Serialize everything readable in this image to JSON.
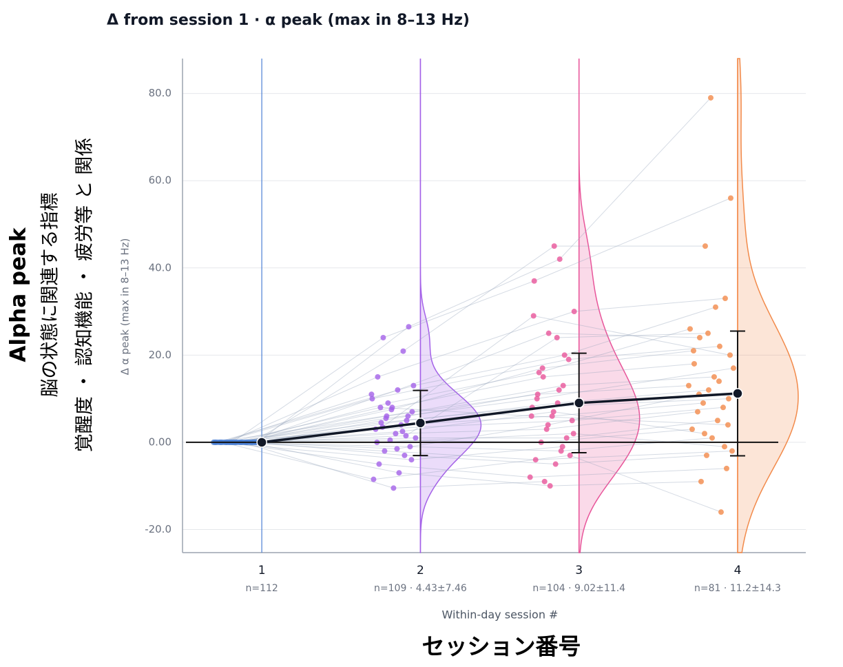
{
  "chart_data": {
    "type": "raincloud",
    "title": "Δ from session 1 · α peak (max in 8–13 Hz)",
    "y_title": "Alpha peak",
    "y_subtitle_1": "脳の状態に関連する指標",
    "y_subtitle_2": "覚醒度 ・ 認知機能 ・ 疲労等 と 関係",
    "y_axis_label": "Δ α peak (max in 8–13 Hz)",
    "x_axis_label": "Within-day session #",
    "x_subtitle": "セッション番号",
    "categories": [
      "1",
      "2",
      "3",
      "4"
    ],
    "category_notes": [
      "n=112",
      "n=109 · 4.43±7.46",
      "n=104 · 9.02±11.4",
      "n=81 · 11.2±14.3"
    ],
    "colors": [
      "#4a7fd4",
      "#a461e8",
      "#e8559a",
      "#f28a4a"
    ],
    "means": [
      0,
      4.43,
      9.02,
      11.2
    ],
    "sd": [
      null,
      7.46,
      11.4,
      14.3
    ],
    "xlim": [
      0.5,
      4.43
    ],
    "ylim": [
      -25.3,
      88
    ],
    "yticks": [
      {
        "value": -20,
        "label": "-20.0"
      },
      {
        "value": 0,
        "label": "0.00"
      },
      {
        "value": 20,
        "label": "20.0"
      },
      {
        "value": 40,
        "label": "40.0"
      },
      {
        "value": 60,
        "label": "60.0"
      },
      {
        "value": 80,
        "label": "80.0"
      }
    ],
    "grid": true,
    "subjects": [
      [
        0,
        26.5,
        42,
        79
      ],
      [
        0,
        24,
        37,
        56
      ],
      [
        0,
        20.9,
        45,
        45
      ],
      [
        0,
        15,
        30,
        33
      ],
      [
        0,
        12,
        25,
        24
      ],
      [
        0,
        10,
        19,
        22
      ],
      [
        0,
        8,
        15,
        18
      ],
      [
        0,
        7,
        13,
        15
      ],
      [
        0,
        6,
        11,
        13
      ],
      [
        0,
        5,
        9,
        12
      ],
      [
        0,
        4.5,
        8,
        10
      ],
      [
        0,
        4,
        6,
        9
      ],
      [
        0,
        3,
        5,
        8
      ],
      [
        0,
        2,
        3,
        7
      ],
      [
        0,
        1,
        1,
        5
      ],
      [
        0,
        0.5,
        0,
        3
      ],
      [
        0,
        -1,
        -2,
        1
      ],
      [
        0,
        -2,
        -4,
        -2
      ],
      [
        0,
        -3,
        -5,
        -3
      ],
      [
        0,
        -5,
        -8,
        -6
      ],
      [
        0,
        -7,
        -10,
        -9
      ],
      [
        0,
        -8.5,
        -3,
        -16
      ],
      [
        0,
        -10.5,
        -9,
        null
      ],
      [
        0,
        13,
        20,
        31
      ],
      [
        0,
        9,
        16,
        26
      ],
      [
        0,
        6,
        12,
        null
      ],
      [
        0,
        3.5,
        29,
        20
      ],
      [
        0,
        2.5,
        7,
        2
      ],
      [
        0,
        0,
        2,
        -1
      ],
      [
        0,
        -1.5,
        4,
        11
      ],
      [
        0,
        11,
        null,
        14
      ],
      [
        0,
        7.5,
        17,
        21
      ],
      [
        0,
        -4,
        -1,
        null
      ],
      [
        0,
        5.5,
        10,
        17
      ],
      [
        0,
        1.5,
        24,
        25
      ],
      [
        0,
        8,
        6,
        4
      ]
    ]
  }
}
